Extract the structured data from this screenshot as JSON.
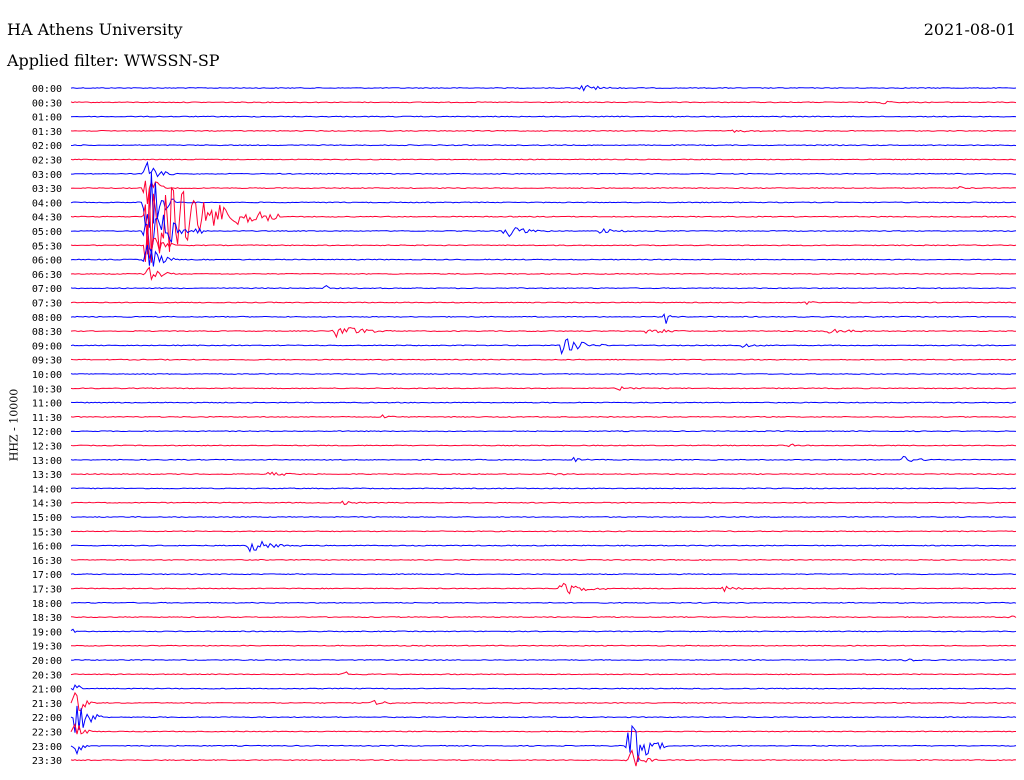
{
  "header": {
    "station": "HA Athens University",
    "date": "2021-08-01",
    "filter": "Applied filter: WWSSN-SP"
  },
  "chart_data": {
    "type": "line",
    "ylabel": "HHZ - 10000",
    "colors": [
      "#0000ff",
      "#ff0033"
    ],
    "rows": [
      {
        "label": "00:00",
        "events": [
          {
            "x": 0.54,
            "amp": 4,
            "dur": 0.05
          }
        ]
      },
      {
        "label": "00:30",
        "events": [
          {
            "x": 0.86,
            "amp": 2,
            "dur": 0.03
          }
        ]
      },
      {
        "label": "01:00",
        "events": []
      },
      {
        "label": "01:30",
        "events": [
          {
            "x": 0.7,
            "amp": 1.5,
            "dur": 0.06
          }
        ]
      },
      {
        "label": "02:00",
        "events": []
      },
      {
        "label": "02:30",
        "events": []
      },
      {
        "label": "03:00",
        "events": [
          {
            "x": 0.08,
            "amp": 14,
            "dur": 0.03
          }
        ]
      },
      {
        "label": "03:30",
        "events": [
          {
            "x": 0.08,
            "amp": 30,
            "dur": 0.02
          },
          {
            "x": 0.94,
            "amp": 2,
            "dur": 0.02
          }
        ]
      },
      {
        "label": "04:00",
        "events": [
          {
            "x": 0.08,
            "amp": 50,
            "dur": 0.03
          }
        ]
      },
      {
        "label": "04:30",
        "events": [
          {
            "x": 0.08,
            "amp": 60,
            "dur": 0.14
          }
        ]
      },
      {
        "label": "05:00",
        "events": [
          {
            "x": 0.08,
            "amp": 40,
            "dur": 0.06
          },
          {
            "x": 0.46,
            "amp": 7,
            "dur": 0.05
          },
          {
            "x": 0.56,
            "amp": 3,
            "dur": 0.05
          }
        ]
      },
      {
        "label": "05:30",
        "events": [
          {
            "x": 0.08,
            "amp": 25,
            "dur": 0.03
          }
        ]
      },
      {
        "label": "06:00",
        "events": [
          {
            "x": 0.08,
            "amp": 20,
            "dur": 0.03
          }
        ]
      },
      {
        "label": "06:30",
        "events": [
          {
            "x": 0.08,
            "amp": 12,
            "dur": 0.03
          }
        ]
      },
      {
        "label": "07:00",
        "events": [
          {
            "x": 0.27,
            "amp": 4,
            "dur": 0.005
          }
        ]
      },
      {
        "label": "07:30",
        "events": [
          {
            "x": 0.78,
            "amp": 3,
            "dur": 0.01
          }
        ]
      },
      {
        "label": "08:00",
        "events": [
          {
            "x": 0.63,
            "amp": 10,
            "dur": 0.005
          }
        ]
      },
      {
        "label": "08:30",
        "events": [
          {
            "x": 0.28,
            "amp": 8,
            "dur": 0.06
          },
          {
            "x": 0.61,
            "amp": 3,
            "dur": 0.06
          },
          {
            "x": 0.8,
            "amp": 3,
            "dur": 0.06
          }
        ]
      },
      {
        "label": "09:00",
        "events": [
          {
            "x": 0.52,
            "amp": 10,
            "dur": 0.05
          },
          {
            "x": 0.71,
            "amp": 3,
            "dur": 0.04
          }
        ]
      },
      {
        "label": "09:30",
        "events": []
      },
      {
        "label": "10:00",
        "events": []
      },
      {
        "label": "10:30",
        "events": [
          {
            "x": 0.58,
            "amp": 3,
            "dur": 0.03
          }
        ]
      },
      {
        "label": "11:00",
        "events": []
      },
      {
        "label": "11:30",
        "events": [
          {
            "x": 0.33,
            "amp": 2,
            "dur": 0.04
          }
        ]
      },
      {
        "label": "12:00",
        "events": []
      },
      {
        "label": "12:30",
        "events": [
          {
            "x": 0.76,
            "amp": 3,
            "dur": 0.01
          }
        ]
      },
      {
        "label": "13:00",
        "events": [
          {
            "x": 0.53,
            "amp": 3,
            "dur": 0.03
          },
          {
            "x": 0.88,
            "amp": 4,
            "dur": 0.04
          }
        ]
      },
      {
        "label": "13:30",
        "events": [
          {
            "x": 0.21,
            "amp": 3,
            "dur": 0.04
          },
          {
            "x": 0.5,
            "amp": 2,
            "dur": 0.04
          }
        ]
      },
      {
        "label": "14:00",
        "events": []
      },
      {
        "label": "14:30",
        "events": [
          {
            "x": 0.29,
            "amp": 4,
            "dur": 0.02
          }
        ]
      },
      {
        "label": "15:00",
        "events": []
      },
      {
        "label": "15:30",
        "events": []
      },
      {
        "label": "16:00",
        "events": [
          {
            "x": 0.19,
            "amp": 7,
            "dur": 0.06
          }
        ]
      },
      {
        "label": "16:30",
        "events": []
      },
      {
        "label": "17:00",
        "events": []
      },
      {
        "label": "17:30",
        "events": [
          {
            "x": 0.52,
            "amp": 10,
            "dur": 0.05
          },
          {
            "x": 0.69,
            "amp": 3,
            "dur": 0.04
          }
        ]
      },
      {
        "label": "18:00",
        "events": []
      },
      {
        "label": "18:30",
        "events": [
          {
            "x": 0.995,
            "amp": 6,
            "dur": 0.005
          }
        ]
      },
      {
        "label": "19:00",
        "events": [
          {
            "x": 0.003,
            "amp": 4,
            "dur": 0.01
          }
        ]
      },
      {
        "label": "19:30",
        "events": []
      },
      {
        "label": "20:00",
        "events": [
          {
            "x": 0.88,
            "amp": 2,
            "dur": 0.04
          }
        ]
      },
      {
        "label": "20:30",
        "events": [
          {
            "x": 0.29,
            "amp": 4,
            "dur": 0.03
          }
        ]
      },
      {
        "label": "21:00",
        "events": [
          {
            "x": 0.005,
            "amp": 8,
            "dur": 0.01
          }
        ]
      },
      {
        "label": "21:30",
        "events": [
          {
            "x": 0.005,
            "amp": 18,
            "dur": 0.02
          },
          {
            "x": 0.32,
            "amp": 3,
            "dur": 0.04
          }
        ]
      },
      {
        "label": "22:00",
        "events": [
          {
            "x": 0.005,
            "amp": 28,
            "dur": 0.03
          }
        ]
      },
      {
        "label": "22:30",
        "events": [
          {
            "x": 0.005,
            "amp": 14,
            "dur": 0.02
          }
        ]
      },
      {
        "label": "23:00",
        "events": [
          {
            "x": 0.005,
            "amp": 10,
            "dur": 0.02
          },
          {
            "x": 0.59,
            "amp": 35,
            "dur": 0.04
          }
        ]
      },
      {
        "label": "23:30",
        "events": [
          {
            "x": 0.59,
            "amp": 14,
            "dur": 0.03
          }
        ]
      }
    ]
  }
}
